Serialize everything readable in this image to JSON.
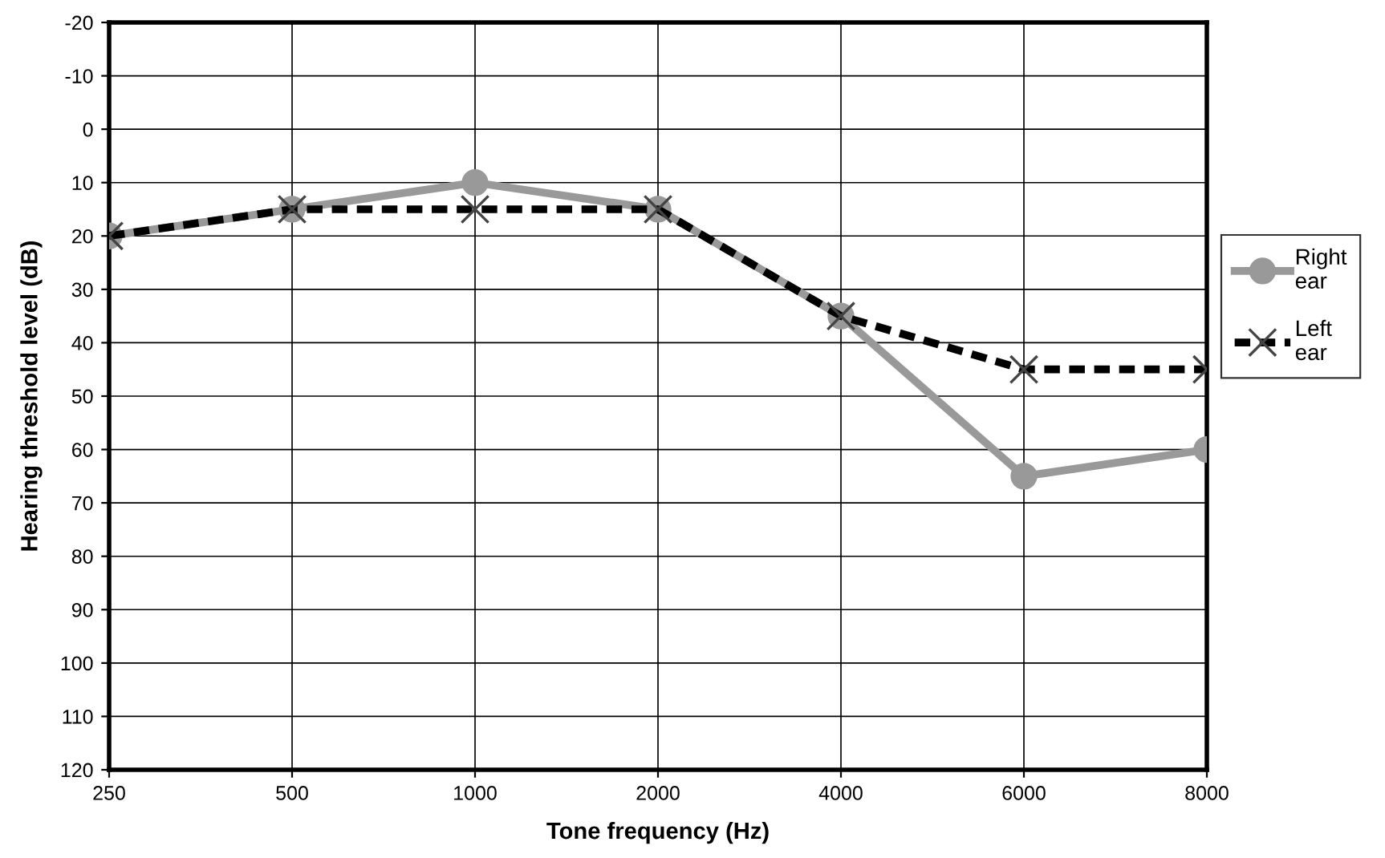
{
  "chart_data": {
    "type": "line",
    "xlabel": "Tone frequency (Hz)",
    "ylabel": "Hearing threshold level (dB)",
    "categories": [
      "250",
      "500",
      "1000",
      "2000",
      "4000",
      "6000",
      "8000"
    ],
    "series": [
      {
        "name": "Right\near",
        "color": "#999999",
        "marker": "circle",
        "line_style": "solid",
        "values": [
          20,
          15,
          10,
          15,
          35,
          65,
          60
        ]
      },
      {
        "name": "Left\near",
        "color": "#000000",
        "marker": "cross",
        "line_style": "dashed",
        "values": [
          20,
          15,
          15,
          15,
          35,
          45,
          45
        ]
      }
    ],
    "ylim": [
      120,
      -20
    ],
    "yticks": [
      -20,
      -10,
      0,
      10,
      20,
      30,
      40,
      50,
      60,
      70,
      80,
      90,
      100,
      110,
      120
    ],
    "grid": true,
    "legend": "right"
  }
}
